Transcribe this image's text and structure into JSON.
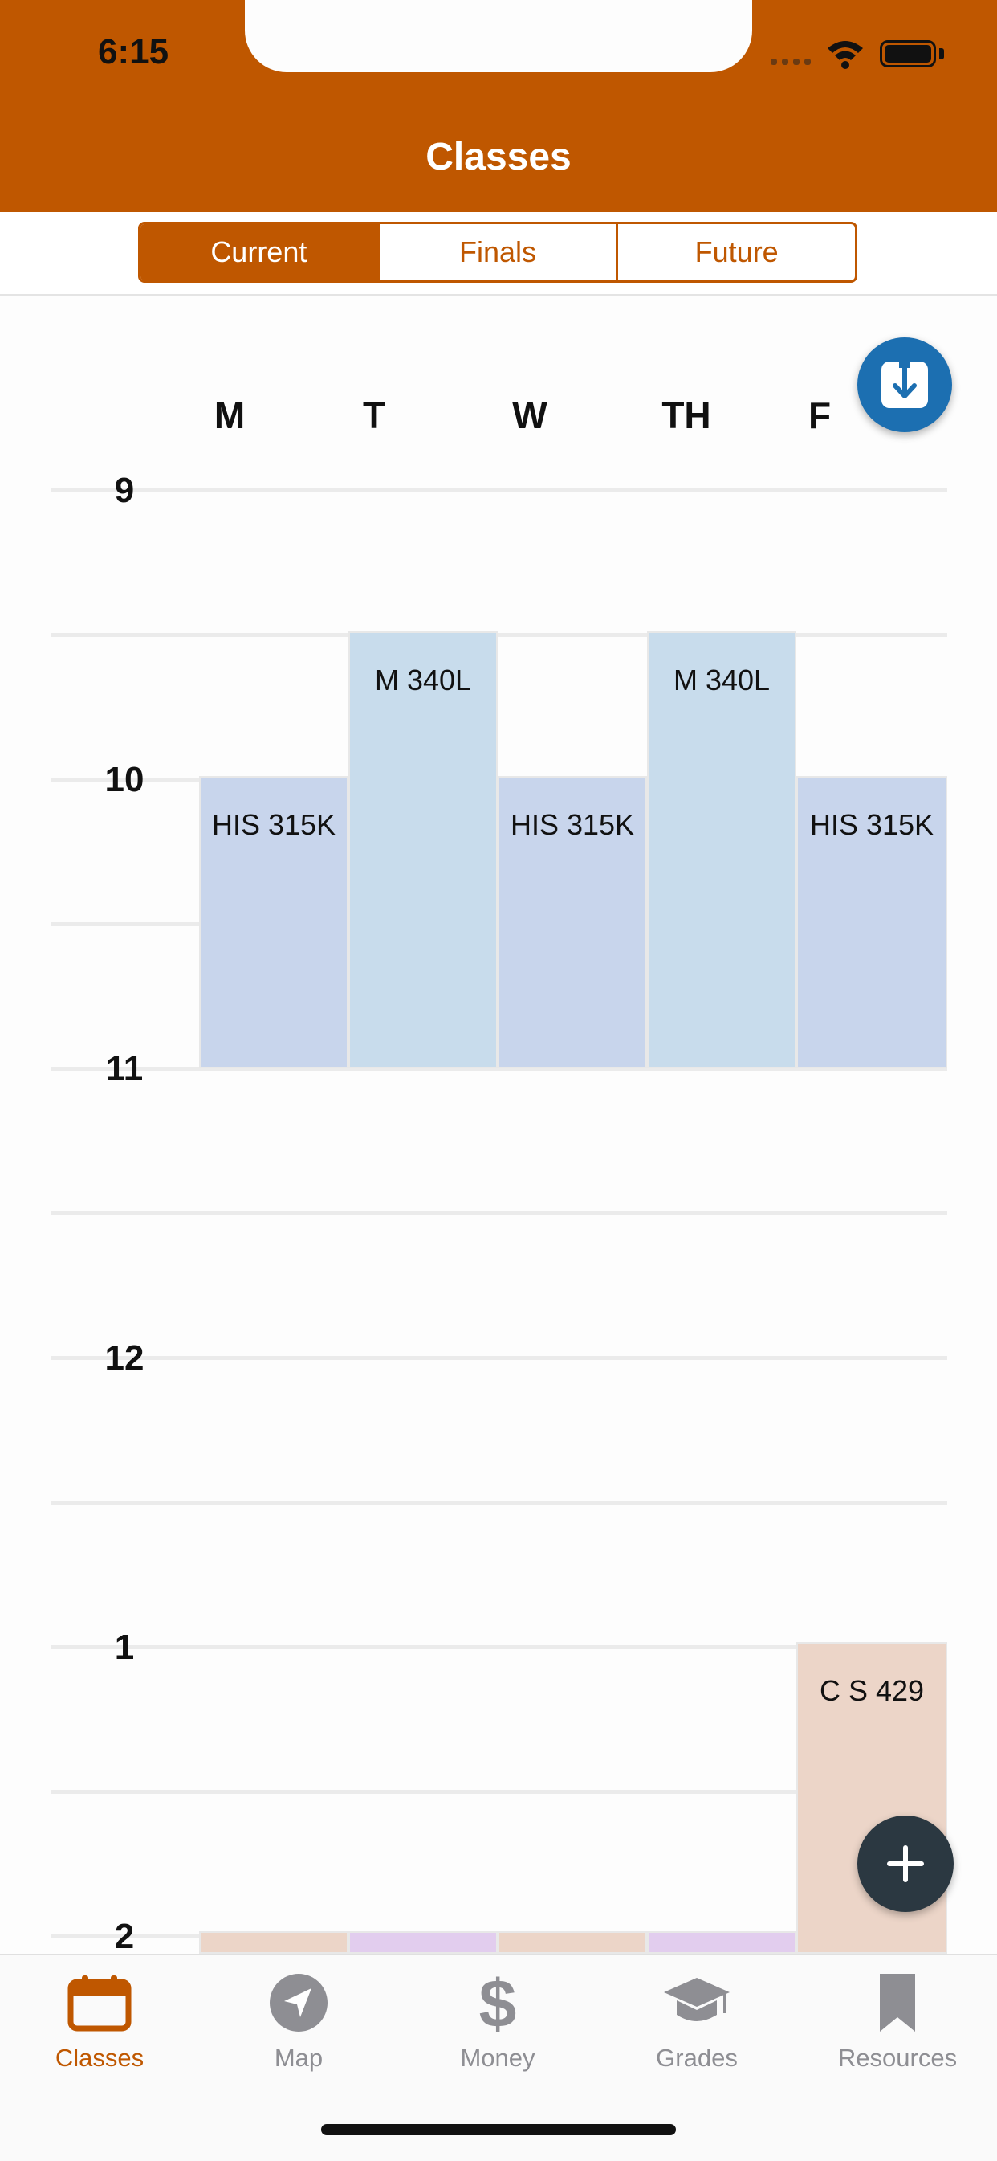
{
  "status_bar": {
    "time": "6:15"
  },
  "nav": {
    "title": "Classes"
  },
  "segments": [
    {
      "label": "Current",
      "active": true
    },
    {
      "label": "Finals",
      "active": false
    },
    {
      "label": "Future",
      "active": false
    }
  ],
  "schedule": {
    "days": [
      "M",
      "T",
      "W",
      "TH",
      "F"
    ],
    "hours": [
      "9",
      "10",
      "11",
      "12",
      "1",
      "2"
    ],
    "classes": [
      {
        "label": "HIS 315K",
        "day": "M",
        "start": "10:00",
        "end": "11:00",
        "color": "#c8d5ec"
      },
      {
        "label": "M 340L",
        "day": "T",
        "start": "9:30",
        "end": "11:00",
        "color": "#c8dcec"
      },
      {
        "label": "HIS 315K",
        "day": "W",
        "start": "10:00",
        "end": "11:00",
        "color": "#c8d5ec"
      },
      {
        "label": "M 340L",
        "day": "TH",
        "start": "9:30",
        "end": "11:00",
        "color": "#c8dcec"
      },
      {
        "label": "HIS 315K",
        "day": "F",
        "start": "10:00",
        "end": "11:00",
        "color": "#c8d5ec"
      },
      {
        "label": "C S 429",
        "day": "F",
        "start": "1:00",
        "end": "",
        "color": "#ecd5c8"
      },
      {
        "label": "",
        "day": "M",
        "start": "2:00",
        "end": "",
        "color": "#ecd5c8"
      },
      {
        "label": "",
        "day": "T",
        "start": "2:00",
        "end": "",
        "color": "#e2cdee"
      },
      {
        "label": "",
        "day": "W",
        "start": "2:00",
        "end": "",
        "color": "#ecd5c8"
      },
      {
        "label": "",
        "day": "TH",
        "start": "2:00",
        "end": "",
        "color": "#e2cdee"
      }
    ]
  },
  "fab": {
    "download_icon": "download-icon",
    "add_icon": "plus-icon"
  },
  "tabbar": {
    "items": [
      {
        "label": "Classes",
        "icon": "calendar-icon",
        "active": true
      },
      {
        "label": "Map",
        "icon": "navigation-arrow-icon",
        "active": false
      },
      {
        "label": "Money",
        "icon": "dollar-icon",
        "active": false
      },
      {
        "label": "Grades",
        "icon": "graduation-cap-icon",
        "active": false
      },
      {
        "label": "Resources",
        "icon": "bookmark-icon",
        "active": false
      }
    ]
  },
  "colors": {
    "brand": "#bf5700",
    "download_fab": "#1c6fb1",
    "add_fab": "#2b3841",
    "inactive_tab": "#8e8e93"
  }
}
